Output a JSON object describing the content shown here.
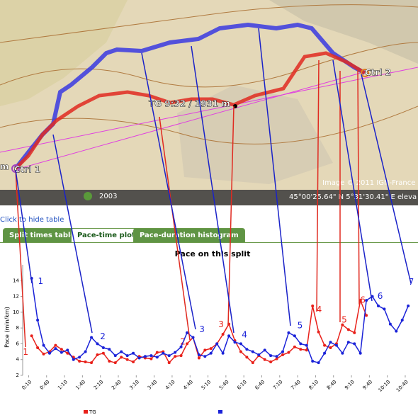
{
  "map": {
    "scale_label": "m",
    "route_label": "TG 9:32 / 1931 m",
    "ctrl_start": "Ctrl 1",
    "ctrl_end": "Ctrl 2",
    "credit": "Image © 2011 IGN-France",
    "year": "2003",
    "coords": "45°00'25.64\" N    5°31'30.41\" E  eleva"
  },
  "ui": {
    "hide_link": "Click to hide table",
    "tabs": [
      "Split times table",
      "Pace-time plot",
      "Pace-duration histogram"
    ]
  },
  "chart_data": {
    "type": "line",
    "title": "Pace on this split",
    "y_label": "Pace (min/km)",
    "xlim": [
      0,
      659
    ],
    "ylim": [
      2,
      16
    ],
    "yticks": [
      2,
      4,
      6,
      8,
      10,
      12,
      14
    ],
    "xticks": [
      {
        "value": 10,
        "label": "0:10"
      },
      {
        "value": 40,
        "label": "0:40"
      },
      {
        "value": 70,
        "label": "1:10"
      },
      {
        "value": 100,
        "label": "1:40"
      },
      {
        "value": 130,
        "label": "2:10"
      },
      {
        "value": 160,
        "label": "2:40"
      },
      {
        "value": 190,
        "label": "3:10"
      },
      {
        "value": 220,
        "label": "3:40"
      },
      {
        "value": 250,
        "label": "4:10"
      },
      {
        "value": 280,
        "label": "4:40"
      },
      {
        "value": 310,
        "label": "5:10"
      },
      {
        "value": 340,
        "label": "5:40"
      },
      {
        "value": 370,
        "label": "6:10"
      },
      {
        "value": 400,
        "label": "6:40"
      },
      {
        "value": 430,
        "label": "7:10"
      },
      {
        "value": 460,
        "label": "7:40"
      },
      {
        "value": 490,
        "label": "8:10"
      },
      {
        "value": 520,
        "label": "8:40"
      },
      {
        "value": 550,
        "label": "9:10"
      },
      {
        "value": 580,
        "label": "9:40"
      },
      {
        "value": 610,
        "label": "10:10"
      },
      {
        "value": 640,
        "label": "10:40"
      }
    ],
    "series": [
      {
        "name": "TG",
        "color": "#e8201a",
        "x": [
          15,
          25,
          35,
          45,
          55,
          65,
          75,
          85,
          95,
          105,
          115,
          125,
          135,
          145,
          155,
          165,
          175,
          185,
          195,
          205,
          215,
          225,
          235,
          245,
          255,
          265,
          275,
          285,
          295,
          305,
          315,
          325,
          335,
          345,
          355,
          365,
          375,
          385,
          395,
          405,
          415,
          425,
          435,
          445,
          455,
          465,
          475,
          485,
          495,
          505,
          515,
          525,
          535,
          545,
          555,
          565,
          575
        ],
        "values": [
          7.0,
          5.5,
          4.7,
          5.0,
          5.8,
          5.3,
          4.8,
          4.3,
          3.8,
          3.7,
          3.6,
          4.6,
          4.8,
          3.8,
          3.6,
          4.3,
          4.0,
          3.7,
          4.4,
          4.2,
          4.1,
          4.9,
          5.0,
          3.6,
          4.4,
          4.5,
          6.0,
          6.8,
          4.2,
          5.2,
          5.4,
          6.0,
          7.2,
          8.5,
          6.4,
          5.0,
          4.3,
          3.6,
          4.5,
          4.0,
          3.7,
          4.1,
          4.6,
          4.9,
          5.6,
          5.3,
          5.2,
          10.8,
          7.5,
          5.8,
          5.5,
          6.0,
          8.4,
          7.8,
          7.4,
          11.5,
          9.6
        ],
        "annotations": [
          {
            "text": "1",
            "x": 5,
            "y": 4.9
          },
          {
            "text": "2",
            "x": 268,
            "y": 6.2
          },
          {
            "text": "3",
            "x": 332,
            "y": 8.4
          },
          {
            "text": "4",
            "x": 496,
            "y": 10.3
          },
          {
            "text": "5",
            "x": 538,
            "y": 9.0
          },
          {
            "text": "6",
            "x": 569,
            "y": 11.5
          }
        ]
      },
      {
        "color": "#1a22d8",
        "x": [
          15,
          25,
          35,
          45,
          55,
          65,
          75,
          85,
          95,
          105,
          115,
          125,
          135,
          145,
          155,
          165,
          175,
          185,
          195,
          205,
          215,
          225,
          235,
          245,
          255,
          265,
          275,
          285,
          295,
          305,
          315,
          325,
          335,
          345,
          355,
          365,
          375,
          385,
          395,
          405,
          415,
          425,
          435,
          445,
          455,
          465,
          475,
          485,
          495,
          505,
          515,
          525,
          535,
          545,
          555,
          565,
          575,
          585,
          595,
          605,
          615,
          625,
          635,
          645
        ],
        "values": [
          14.3,
          9.0,
          5.8,
          4.8,
          5.4,
          4.9,
          5.2,
          4.0,
          4.3,
          5.0,
          6.8,
          6.0,
          5.5,
          5.3,
          4.5,
          5.0,
          4.5,
          4.8,
          4.2,
          4.4,
          4.5,
          4.3,
          4.8,
          4.5,
          4.9,
          5.6,
          7.4,
          6.8,
          4.6,
          4.4,
          4.8,
          6.0,
          4.8,
          7.0,
          6.2,
          6.0,
          5.3,
          5.0,
          4.6,
          5.2,
          4.5,
          4.4,
          5.0,
          7.4,
          7.0,
          6.0,
          5.8,
          3.8,
          3.6,
          4.8,
          6.2,
          5.8,
          4.8,
          6.2,
          6.0,
          4.8,
          11.5,
          12.0,
          10.8,
          10.4,
          8.5,
          7.6,
          9.0,
          10.8
        ],
        "annotations": [
          {
            "text": "1",
            "x": 30,
            "y": 13.9
          },
          {
            "text": "2",
            "x": 134,
            "y": 6.9
          },
          {
            "text": "3",
            "x": 300,
            "y": 7.8
          },
          {
            "text": "4",
            "x": 371,
            "y": 7.1
          },
          {
            "text": "5",
            "x": 464,
            "y": 8.3
          },
          {
            "text": "6",
            "x": 598,
            "y": 12.0
          },
          {
            "text": "7",
            "x": 650,
            "y": 13.8
          }
        ]
      }
    ]
  }
}
